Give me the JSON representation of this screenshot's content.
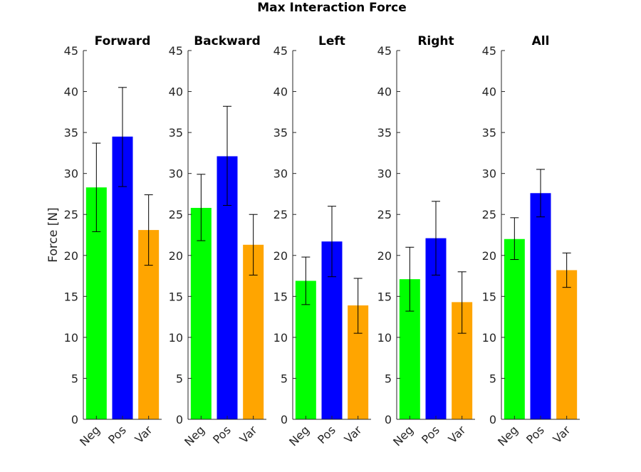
{
  "chart_data": {
    "type": "bar",
    "title": "Max Interaction Force",
    "ylabel": "Force [N]",
    "ylim": [
      0,
      45
    ],
    "yticks": [
      0,
      5,
      10,
      15,
      20,
      25,
      30,
      35,
      40,
      45
    ],
    "categories": [
      "Neg",
      "Pos",
      "Var"
    ],
    "colors": [
      "#00ff00",
      "#0000ff",
      "#ffa500"
    ],
    "error_bars": "whiskers",
    "panels": [
      {
        "title": "Forward",
        "values": [
          28.3,
          34.5,
          23.1
        ],
        "errors": [
          [
            22.9,
            33.7
          ],
          [
            28.4,
            40.5
          ],
          [
            18.8,
            27.4
          ]
        ]
      },
      {
        "title": "Backward",
        "values": [
          25.8,
          32.1,
          21.3
        ],
        "errors": [
          [
            21.8,
            29.9
          ],
          [
            26.1,
            38.2
          ],
          [
            17.6,
            25.0
          ]
        ]
      },
      {
        "title": "Left",
        "values": [
          16.9,
          21.7,
          13.9
        ],
        "errors": [
          [
            14.0,
            19.8
          ],
          [
            17.4,
            26.0
          ],
          [
            10.5,
            17.2
          ]
        ]
      },
      {
        "title": "Right",
        "values": [
          17.1,
          22.1,
          14.3
        ],
        "errors": [
          [
            13.2,
            21.0
          ],
          [
            17.6,
            26.6
          ],
          [
            10.5,
            18.0
          ]
        ]
      },
      {
        "title": "All",
        "values": [
          22.0,
          27.6,
          18.2
        ],
        "errors": [
          [
            19.5,
            24.6
          ],
          [
            24.7,
            30.5
          ],
          [
            16.1,
            20.3
          ]
        ]
      }
    ]
  }
}
